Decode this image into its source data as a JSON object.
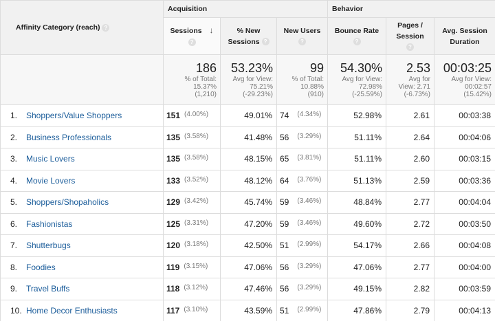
{
  "groups": {
    "acquisition": "Acquisition",
    "behavior": "Behavior"
  },
  "columns": {
    "category": "Affinity Category (reach)",
    "sessions": "Sessions",
    "pct_new": "% New Sessions",
    "new_users": "New Users",
    "bounce": "Bounce Rate",
    "pages_line1": "Pages /",
    "pages_line2": "Session",
    "duration_line1": "Avg. Session",
    "duration_line2": "Duration",
    "pct_new_line1": "% New",
    "pct_new_line2": "Sessions"
  },
  "icons": {
    "help": "?",
    "sort": "↓"
  },
  "totals": {
    "sessions": {
      "value": "186",
      "l1": "% of Total:",
      "l2": "15.37%",
      "l3": "(1,210)"
    },
    "pct_new": {
      "value": "53.23%",
      "l1": "Avg for View:",
      "l2": "75.21%",
      "l3": "(-29.23%)"
    },
    "new_users": {
      "value": "99",
      "l1": "% of Total:",
      "l2": "10.88%",
      "l3": "(910)"
    },
    "bounce": {
      "value": "54.30%",
      "l1": "Avg for View:",
      "l2": "72.98%",
      "l3": "(-25.59%)"
    },
    "pages": {
      "value": "2.53",
      "l1": "Avg for",
      "l2": "View: 2.71",
      "l3": "(-6.73%)"
    },
    "duration": {
      "value": "00:03:25",
      "l1": "Avg for View:",
      "l2": "00:02:57",
      "l3": "(15.42%)"
    }
  },
  "rows": [
    {
      "idx": "1.",
      "cat": "Shoppers/Value Shoppers",
      "sessions": "151",
      "sess_pct": "(4.00%)",
      "pct_new": "49.01%",
      "new_users": "74",
      "nu_pct": "(4.34%)",
      "bounce": "52.98%",
      "pages": "2.61",
      "duration": "00:03:38"
    },
    {
      "idx": "2.",
      "cat": "Business Professionals",
      "sessions": "135",
      "sess_pct": "(3.58%)",
      "pct_new": "41.48%",
      "new_users": "56",
      "nu_pct": "(3.29%)",
      "bounce": "51.11%",
      "pages": "2.64",
      "duration": "00:04:06"
    },
    {
      "idx": "3.",
      "cat": "Music Lovers",
      "sessions": "135",
      "sess_pct": "(3.58%)",
      "pct_new": "48.15%",
      "new_users": "65",
      "nu_pct": "(3.81%)",
      "bounce": "51.11%",
      "pages": "2.60",
      "duration": "00:03:15"
    },
    {
      "idx": "4.",
      "cat": "Movie Lovers",
      "sessions": "133",
      "sess_pct": "(3.52%)",
      "pct_new": "48.12%",
      "new_users": "64",
      "nu_pct": "(3.76%)",
      "bounce": "51.13%",
      "pages": "2.59",
      "duration": "00:03:36"
    },
    {
      "idx": "5.",
      "cat": "Shoppers/Shopaholics",
      "sessions": "129",
      "sess_pct": "(3.42%)",
      "pct_new": "45.74%",
      "new_users": "59",
      "nu_pct": "(3.46%)",
      "bounce": "48.84%",
      "pages": "2.77",
      "duration": "00:04:04"
    },
    {
      "idx": "6.",
      "cat": "Fashionistas",
      "sessions": "125",
      "sess_pct": "(3.31%)",
      "pct_new": "47.20%",
      "new_users": "59",
      "nu_pct": "(3.46%)",
      "bounce": "49.60%",
      "pages": "2.72",
      "duration": "00:03:50"
    },
    {
      "idx": "7.",
      "cat": "Shutterbugs",
      "sessions": "120",
      "sess_pct": "(3.18%)",
      "pct_new": "42.50%",
      "new_users": "51",
      "nu_pct": "(2.99%)",
      "bounce": "54.17%",
      "pages": "2.66",
      "duration": "00:04:08"
    },
    {
      "idx": "8.",
      "cat": "Foodies",
      "sessions": "119",
      "sess_pct": "(3.15%)",
      "pct_new": "47.06%",
      "new_users": "56",
      "nu_pct": "(3.29%)",
      "bounce": "47.06%",
      "pages": "2.77",
      "duration": "00:04:00"
    },
    {
      "idx": "9.",
      "cat": "Travel Buffs",
      "sessions": "118",
      "sess_pct": "(3.12%)",
      "pct_new": "47.46%",
      "new_users": "56",
      "nu_pct": "(3.29%)",
      "bounce": "49.15%",
      "pages": "2.82",
      "duration": "00:03:59"
    },
    {
      "idx": "10.",
      "cat": "Home Decor Enthusiasts",
      "sessions": "117",
      "sess_pct": "(3.10%)",
      "pct_new": "43.59%",
      "new_users": "51",
      "nu_pct": "(2.99%)",
      "bounce": "47.86%",
      "pages": "2.79",
      "duration": "00:04:13"
    }
  ]
}
